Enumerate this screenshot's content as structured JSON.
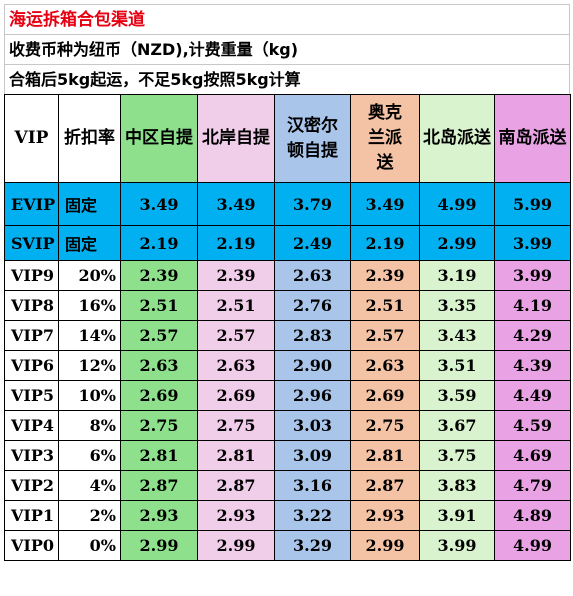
{
  "header": {
    "title": "海运拆箱合包渠道",
    "line1": "收费币种为纽币（NZD),计费重量（kg)",
    "line2": "合箱后5kg起运，不足5kg按照5kg计算"
  },
  "columns": [
    "VIP",
    "折扣率",
    "中区自提",
    "北岸自提",
    "汉密尔顿自提",
    "奥克兰派送",
    "北岛派送",
    "南岛派送"
  ],
  "tiers": [
    {
      "vip": "EVIP",
      "discount": "固定",
      "prices": [
        "3.49",
        "3.49",
        "3.79",
        "3.49",
        "4.99",
        "5.99"
      ]
    },
    {
      "vip": "SVIP",
      "discount": "固定",
      "prices": [
        "2.19",
        "2.19",
        "2.49",
        "2.19",
        "2.99",
        "3.99"
      ]
    }
  ],
  "rows": [
    {
      "vip": "VIP9",
      "discount": "20%",
      "prices": [
        "2.39",
        "2.39",
        "2.63",
        "2.39",
        "3.19",
        "3.99"
      ]
    },
    {
      "vip": "VIP8",
      "discount": "16%",
      "prices": [
        "2.51",
        "2.51",
        "2.76",
        "2.51",
        "3.35",
        "4.19"
      ]
    },
    {
      "vip": "VIP7",
      "discount": "14%",
      "prices": [
        "2.57",
        "2.57",
        "2.83",
        "2.57",
        "3.43",
        "4.29"
      ]
    },
    {
      "vip": "VIP6",
      "discount": "12%",
      "prices": [
        "2.63",
        "2.63",
        "2.90",
        "2.63",
        "3.51",
        "4.39"
      ]
    },
    {
      "vip": "VIP5",
      "discount": "10%",
      "prices": [
        "2.69",
        "2.69",
        "2.96",
        "2.69",
        "3.59",
        "4.49"
      ]
    },
    {
      "vip": "VIP4",
      "discount": "8%",
      "prices": [
        "2.75",
        "2.75",
        "3.03",
        "2.75",
        "3.67",
        "4.59"
      ]
    },
    {
      "vip": "VIP3",
      "discount": "6%",
      "prices": [
        "2.81",
        "2.81",
        "3.09",
        "2.81",
        "3.75",
        "4.69"
      ]
    },
    {
      "vip": "VIP2",
      "discount": "4%",
      "prices": [
        "2.87",
        "2.87",
        "3.16",
        "2.87",
        "3.83",
        "4.79"
      ]
    },
    {
      "vip": "VIP1",
      "discount": "2%",
      "prices": [
        "2.93",
        "2.93",
        "3.22",
        "2.93",
        "3.91",
        "4.89"
      ]
    },
    {
      "vip": "VIP0",
      "discount": "0%",
      "prices": [
        "2.99",
        "2.99",
        "3.29",
        "2.99",
        "3.99",
        "4.99"
      ]
    }
  ],
  "colors": {
    "title": "#e60012",
    "tier_blue": "#00b0f0",
    "col_central_pickup": "#8ee08c",
    "col_northshore_pickup": "#f0cde9",
    "col_hamilton_pickup": "#a9c5ea",
    "col_auckland_delivery": "#f4c3a5",
    "col_north_island_delivery": "#d9f3cf",
    "col_south_island_delivery": "#e9a3e4"
  }
}
